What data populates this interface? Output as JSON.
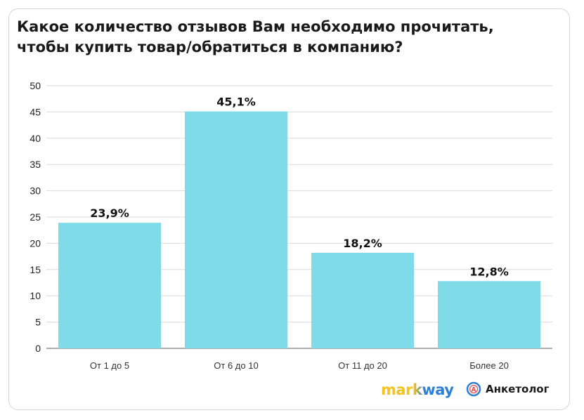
{
  "chart_data": {
    "type": "bar",
    "title": "Какое количество отзывов Вам необходимо прочитать, чтобы купить товар/обратиться в компанию?",
    "categories": [
      "От 1 до 5",
      "От 6 до 10",
      "От 11 до 20",
      "Более 20"
    ],
    "values": [
      23.9,
      45.1,
      18.2,
      12.8
    ],
    "data_labels": [
      "23,9%",
      "45,1%",
      "18,2%",
      "12,8%"
    ],
    "yticks": [
      0,
      5,
      10,
      15,
      20,
      25,
      30,
      35,
      40,
      45,
      50
    ],
    "ylim": [
      0,
      50
    ],
    "grid": true,
    "bar_color": "#80dbe8"
  },
  "logos": {
    "markway": "markway",
    "anketolog": "Анкетолог"
  }
}
